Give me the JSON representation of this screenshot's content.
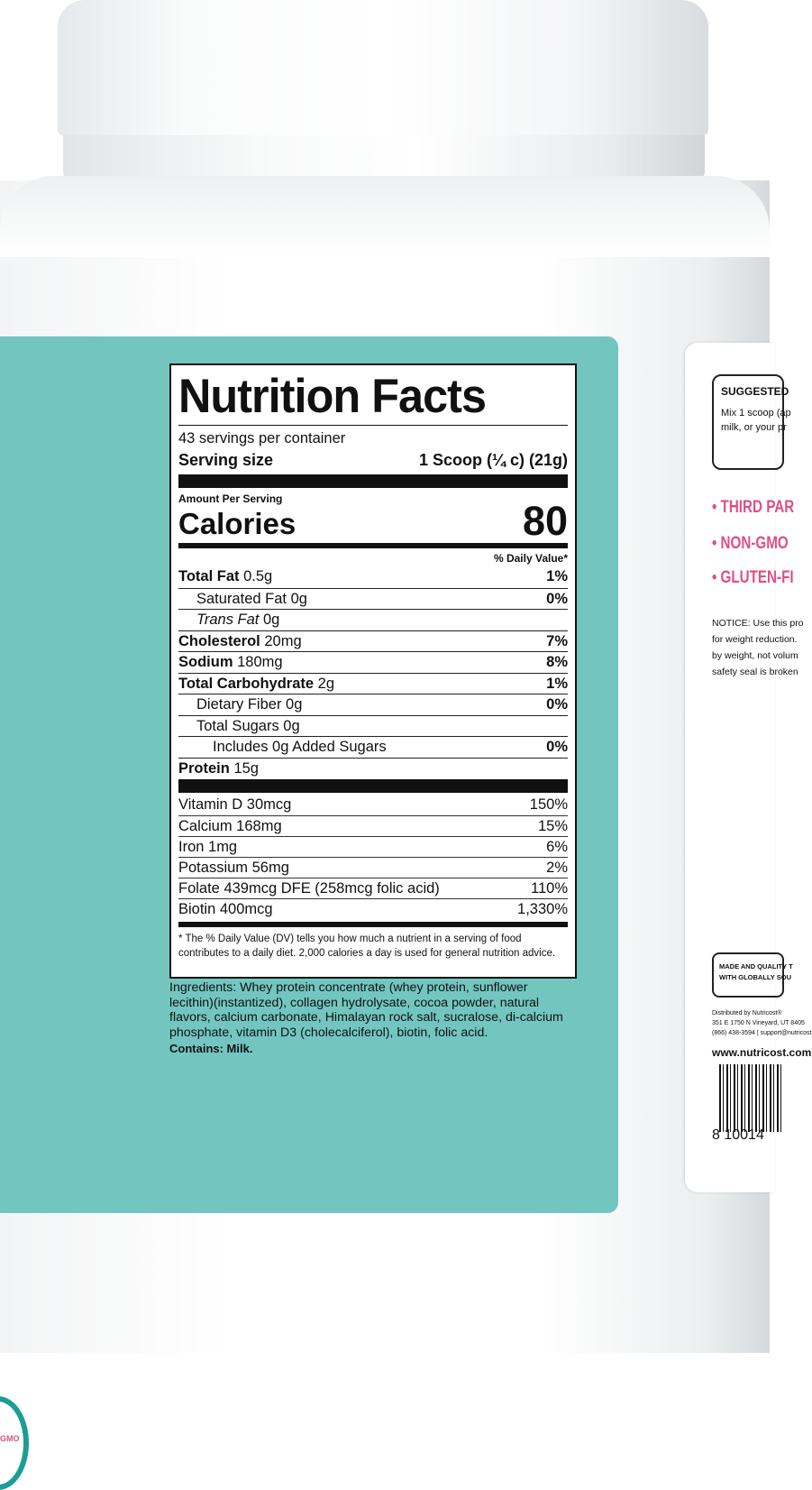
{
  "nutrition": {
    "title": "Nutrition Facts",
    "servings": "43 servings per container",
    "serving_size_label": "Serving size",
    "serving_size_value": "1 Scoop (¼ c) (21g)",
    "amount_per_serving": "Amount Per Serving",
    "calories_label": "Calories",
    "calories_value": "80",
    "dv_header": "% Daily Value*",
    "rows": [
      {
        "label": "Total Fat",
        "amount": "0.5g",
        "dv": "1%"
      },
      {
        "label": "Saturated Fat",
        "amount": "0g",
        "dv": "0%"
      },
      {
        "label": "Trans Fat",
        "amount": "0g",
        "dv": ""
      },
      {
        "label": "Cholesterol",
        "amount": "20mg",
        "dv": "7%"
      },
      {
        "label": "Sodium",
        "amount": "180mg",
        "dv": "8%"
      },
      {
        "label": "Total Carbohydrate",
        "amount": "2g",
        "dv": "1%"
      },
      {
        "label": "Dietary Fiber",
        "amount": "0g",
        "dv": "0%"
      },
      {
        "label": "Total Sugars 0g",
        "amount": "",
        "dv": ""
      },
      {
        "label": "Includes 0g Added Sugars",
        "amount": "",
        "dv": "0%"
      },
      {
        "label": "Protein",
        "amount": "15g",
        "dv": ""
      }
    ],
    "vitamins": [
      {
        "label": "Vitamin D  30mcg",
        "dv": "150%"
      },
      {
        "label": "Calcium  168mg",
        "dv": "15%"
      },
      {
        "label": "Iron  1mg",
        "dv": "6%"
      },
      {
        "label": "Potassium  56mg",
        "dv": "2%"
      },
      {
        "label": "Folate  439mcg DFE (258mcg folic acid)",
        "dv": "110%"
      },
      {
        "label": "Biotin  400mcg",
        "dv": "1,330%"
      }
    ],
    "footnote": "* The % Daily Value (DV) tells you how much a nutrient in a serving of food contributes to a daily diet. 2,000 calories a day is used for general nutrition advice."
  },
  "ingredients": "Ingredients: Whey protein concentrate (whey protein, sunflower lecithin)(instantized), collagen hydrolysate, cocoa powder, natural flavors, calcium carbonate,  Himalayan rock salt, sucralose, di-calcium phosphate, vitamin D3 (cholecalciferol), biotin, folic acid.",
  "contains": "Contains: Milk.",
  "badge": "GMO",
  "right_label": {
    "suggested_title": "SUGGESTED",
    "suggested_text1": "Mix 1 scoop (ap",
    "suggested_text2": "milk, or your pr",
    "claims": [
      "• THIRD PAR",
      "• NON-GMO",
      "• GLUTEN-FI"
    ],
    "notice": [
      "NOTICE: Use this pro",
      "for weight reduction.",
      "by weight, not volum",
      "safety seal is broken"
    ],
    "made": [
      "MADE AND QUALITY T",
      "WITH GLOBALLY SOU"
    ],
    "dist": [
      "Distributed by Nutricost®",
      "351 E 1750 N Vineyard, UT 8405",
      "(866) 438-3594 | support@nutricost"
    ],
    "website": "www.nutricost.com",
    "barcode_digits": "8    10014"
  },
  "colors": {
    "teal": "#73c6c0",
    "pink": "#df4f86",
    "badge_ring": "#1c9d95"
  }
}
